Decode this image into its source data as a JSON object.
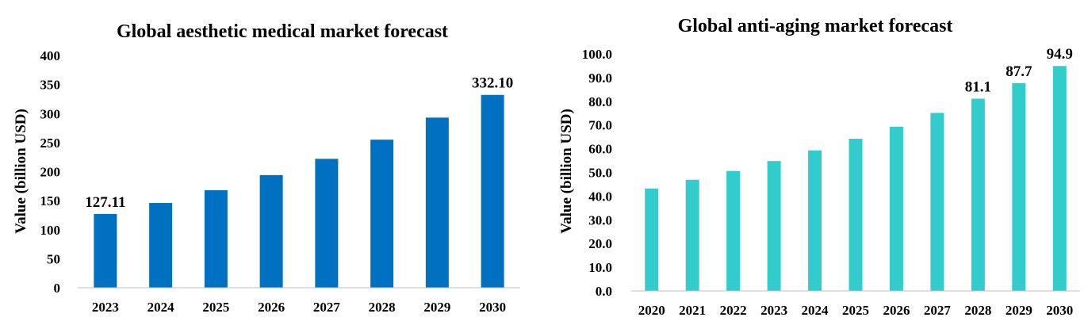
{
  "chart_data": [
    {
      "type": "bar",
      "title": "Global aesthetic medical market forecast",
      "xlabel": "",
      "ylabel": "Value (billion USD)",
      "ylim": [
        0,
        400
      ],
      "yticks": [
        "0",
        "50",
        "100",
        "150",
        "200",
        "250",
        "300",
        "350",
        "400"
      ],
      "categories": [
        "2023",
        "2024",
        "2025",
        "2026",
        "2027",
        "2028",
        "2029",
        "2030"
      ],
      "values": [
        127.11,
        146,
        168,
        194,
        222,
        255,
        293,
        332.1
      ],
      "data_labels": [
        "127.11",
        "",
        "",
        "",
        "",
        "",
        "",
        "332.10"
      ],
      "color": "#0070C0",
      "grid": false
    },
    {
      "type": "bar",
      "title": "Global anti-aging market forecast",
      "xlabel": "",
      "ylabel": "Value (billion USD)",
      "ylim": [
        0,
        100
      ],
      "yticks": [
        "0.0",
        "10.0",
        "20.0",
        "30.0",
        "40.0",
        "50.0",
        "60.0",
        "70.0",
        "80.0",
        "90.0",
        "100.0"
      ],
      "categories": [
        "2020",
        "2021",
        "2022",
        "2023",
        "2024",
        "2025",
        "2026",
        "2027",
        "2028",
        "2029",
        "2030"
      ],
      "values": [
        43.2,
        46.9,
        50.6,
        54.8,
        59.3,
        64.2,
        69.3,
        75.1,
        81.1,
        87.7,
        94.9
      ],
      "data_labels": [
        "",
        "",
        "",
        "",
        "",
        "",
        "",
        "",
        "81.1",
        "87.7",
        "94.9"
      ],
      "color": "#33CCCC",
      "grid": false
    }
  ]
}
